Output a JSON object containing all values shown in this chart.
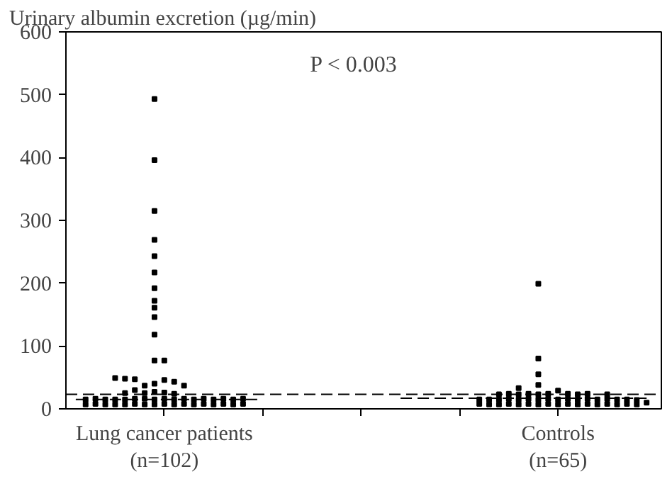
{
  "chart_data": {
    "type": "scatter",
    "ylabel": "Urinary albumin excretion (µg/min)",
    "annotations": [
      "P < 0.003"
    ],
    "categories": [
      null,
      null,
      null,
      null,
      null,
      null,
      null,
      null,
      null,
      "Lung cancer patients\n(n=102)",
      null,
      null,
      null,
      null,
      null,
      null,
      null,
      null,
      null,
      null,
      null,
      null,
      null,
      null,
      null,
      null,
      null,
      null,
      null,
      null,
      null,
      null,
      null,
      null,
      null,
      null,
      null,
      null,
      null,
      null,
      null,
      null,
      null,
      null,
      null,
      null,
      null,
      null,
      null,
      "Controls\n(n=65)",
      null,
      null,
      null,
      null,
      null,
      null,
      null,
      null,
      null,
      null
    ],
    "ylim": [
      0,
      600
    ],
    "yticks": [
      0,
      100,
      200,
      300,
      400,
      500,
      600
    ],
    "grid": false,
    "marker": "square",
    "ref_lines": [
      {
        "axis": "y",
        "value": 23,
        "label": null,
        "color": "#000000",
        "line_style": "dashed"
      }
    ],
    "series": [
      {
        "color": "#000000",
        "values": [
          null,
          7,
          8,
          7,
          7,
          7,
          8,
          7,
          7,
          8,
          7,
          8,
          7,
          8,
          7,
          8,
          7,
          8,
          null,
          null,
          null,
          null,
          null,
          null,
          null,
          null,
          null,
          null,
          null,
          null,
          null,
          null,
          null,
          null,
          null,
          null,
          null,
          null,
          null,
          null,
          null,
          8,
          7,
          7,
          8,
          7,
          8,
          7,
          8,
          7,
          8,
          7,
          8,
          7,
          8,
          7,
          8,
          7,
          10,
          null
        ]
      },
      {
        "color": "#000000",
        "values": [
          null,
          15,
          16,
          15,
          15,
          15,
          16,
          16,
          15,
          16,
          15,
          16,
          15,
          16,
          15,
          16,
          15,
          16,
          null,
          null,
          null,
          null,
          null,
          null,
          null,
          null,
          null,
          null,
          null,
          null,
          null,
          null,
          null,
          null,
          null,
          null,
          null,
          null,
          null,
          null,
          null,
          15,
          15,
          15,
          16,
          15,
          16,
          15,
          16,
          15,
          16,
          15,
          16,
          15,
          16,
          15,
          15,
          14,
          null,
          null
        ]
      },
      {
        "color": "#000000",
        "values": [
          null,
          null,
          null,
          null,
          49,
          25,
          30,
          25,
          27,
          26,
          24,
          37,
          null,
          null,
          null,
          null,
          null,
          null,
          null,
          null,
          null,
          null,
          null,
          null,
          null,
          null,
          null,
          null,
          null,
          null,
          null,
          null,
          null,
          null,
          null,
          null,
          null,
          null,
          null,
          null,
          null,
          null,
          null,
          23,
          24,
          23,
          24,
          23,
          24,
          29,
          24,
          23,
          24,
          null,
          23,
          null,
          null,
          null,
          null,
          null
        ]
      },
      {
        "color": "#000000",
        "values": [
          null,
          null,
          null,
          null,
          null,
          48,
          47,
          37,
          40,
          46,
          43,
          null,
          null,
          null,
          null,
          null,
          null,
          null,
          null,
          null,
          null,
          null,
          null,
          null,
          null,
          null,
          null,
          null,
          null,
          null,
          null,
          null,
          null,
          null,
          null,
          null,
          null,
          null,
          null,
          null,
          null,
          null,
          null,
          null,
          null,
          33,
          null,
          38,
          null,
          null,
          null,
          null,
          null,
          null,
          null,
          null,
          null,
          null,
          null,
          null
        ]
      },
      {
        "color": "#000000",
        "values": [
          null,
          null,
          null,
          null,
          null,
          null,
          null,
          null,
          77,
          77,
          null,
          null,
          null,
          null,
          null,
          null,
          null,
          null,
          null,
          null,
          null,
          null,
          null,
          null,
          null,
          null,
          null,
          null,
          null,
          null,
          null,
          null,
          null,
          null,
          null,
          null,
          null,
          null,
          null,
          null,
          null,
          null,
          null,
          null,
          null,
          null,
          null,
          55,
          null,
          null,
          null,
          null,
          null,
          null,
          null,
          null,
          null,
          null,
          null,
          null
        ]
      },
      {
        "color": "#000000",
        "values": [
          null,
          null,
          null,
          null,
          null,
          null,
          null,
          null,
          118,
          null,
          null,
          null,
          null,
          null,
          null,
          null,
          null,
          null,
          null,
          null,
          null,
          null,
          null,
          null,
          null,
          null,
          null,
          null,
          null,
          null,
          null,
          null,
          null,
          null,
          null,
          null,
          null,
          null,
          null,
          null,
          null,
          null,
          null,
          null,
          null,
          null,
          null,
          80,
          null,
          null,
          null,
          null,
          null,
          null,
          null,
          null,
          null,
          null,
          null,
          null
        ]
      },
      {
        "color": "#000000",
        "values": [
          null,
          null,
          null,
          null,
          null,
          null,
          null,
          null,
          146,
          null,
          null,
          null,
          null,
          null,
          null,
          null,
          null,
          null,
          null,
          null,
          null,
          null,
          null,
          null,
          null,
          null,
          null,
          null,
          null,
          null,
          null,
          null,
          null,
          null,
          null,
          null,
          null,
          null,
          null,
          null,
          null,
          null,
          null,
          null,
          null,
          null,
          null,
          199,
          null,
          null,
          null,
          null,
          null,
          null,
          null,
          null,
          null,
          null,
          null,
          null
        ]
      },
      {
        "color": "#000000",
        "values": [
          null,
          null,
          null,
          null,
          null,
          null,
          null,
          null,
          161,
          null,
          null,
          null,
          null,
          null,
          null,
          null,
          null,
          null,
          null,
          null,
          null,
          null,
          null,
          null,
          null,
          null,
          null,
          null,
          null,
          null,
          null,
          null,
          null,
          null,
          null,
          null,
          null,
          null,
          null,
          null,
          null,
          null,
          null,
          null,
          null,
          null,
          null,
          null,
          null,
          null,
          null,
          null,
          null,
          null,
          null,
          null,
          null,
          null,
          null,
          null
        ]
      },
      {
        "color": "#000000",
        "values": [
          null,
          null,
          null,
          null,
          null,
          null,
          null,
          null,
          172,
          null,
          null,
          null,
          null,
          null,
          null,
          null,
          null,
          null,
          null,
          null,
          null,
          null,
          null,
          null,
          null,
          null,
          null,
          null,
          null,
          null,
          null,
          null,
          null,
          null,
          null,
          null,
          null,
          null,
          null,
          null,
          null,
          null,
          null,
          null,
          null,
          null,
          null,
          null,
          null,
          null,
          null,
          null,
          null,
          null,
          null,
          null,
          null,
          null,
          null,
          null
        ]
      },
      {
        "color": "#000000",
        "values": [
          null,
          null,
          null,
          null,
          null,
          null,
          null,
          null,
          192,
          null,
          null,
          null,
          null,
          null,
          null,
          null,
          null,
          null,
          null,
          null,
          null,
          null,
          null,
          null,
          null,
          null,
          null,
          null,
          null,
          null,
          null,
          null,
          null,
          null,
          null,
          null,
          null,
          null,
          null,
          null,
          null,
          null,
          null,
          null,
          null,
          null,
          null,
          null,
          null,
          null,
          null,
          null,
          null,
          null,
          null,
          null,
          null,
          null,
          null,
          null
        ]
      },
      {
        "color": "#000000",
        "values": [
          null,
          null,
          null,
          null,
          null,
          null,
          null,
          null,
          217,
          null,
          null,
          null,
          null,
          null,
          null,
          null,
          null,
          null,
          null,
          null,
          null,
          null,
          null,
          null,
          null,
          null,
          null,
          null,
          null,
          null,
          null,
          null,
          null,
          null,
          null,
          null,
          null,
          null,
          null,
          null,
          null,
          null,
          null,
          null,
          null,
          null,
          null,
          null,
          null,
          null,
          null,
          null,
          null,
          null,
          null,
          null,
          null,
          null,
          null,
          null
        ]
      },
      {
        "color": "#000000",
        "values": [
          null,
          null,
          null,
          null,
          null,
          null,
          null,
          null,
          243,
          null,
          null,
          null,
          null,
          null,
          null,
          null,
          null,
          null,
          null,
          null,
          null,
          null,
          null,
          null,
          null,
          null,
          null,
          null,
          null,
          null,
          null,
          null,
          null,
          null,
          null,
          null,
          null,
          null,
          null,
          null,
          null,
          null,
          null,
          null,
          null,
          null,
          null,
          null,
          null,
          null,
          null,
          null,
          null,
          null,
          null,
          null,
          null,
          null,
          null,
          null
        ]
      },
      {
        "color": "#000000",
        "values": [
          null,
          null,
          null,
          null,
          null,
          null,
          null,
          null,
          269,
          null,
          null,
          null,
          null,
          null,
          null,
          null,
          null,
          null,
          null,
          null,
          null,
          null,
          null,
          null,
          null,
          null,
          null,
          null,
          null,
          null,
          null,
          null,
          null,
          null,
          null,
          null,
          null,
          null,
          null,
          null,
          null,
          null,
          null,
          null,
          null,
          null,
          null,
          null,
          null,
          null,
          null,
          null,
          null,
          null,
          null,
          null,
          null,
          null,
          null,
          null
        ]
      },
      {
        "color": "#000000",
        "values": [
          null,
          null,
          null,
          null,
          null,
          null,
          null,
          null,
          315,
          null,
          null,
          null,
          null,
          null,
          null,
          null,
          null,
          null,
          null,
          null,
          null,
          null,
          null,
          null,
          null,
          null,
          null,
          null,
          null,
          null,
          null,
          null,
          null,
          null,
          null,
          null,
          null,
          null,
          null,
          null,
          null,
          null,
          null,
          null,
          null,
          null,
          null,
          null,
          null,
          null,
          null,
          null,
          null,
          null,
          null,
          null,
          null,
          null,
          null,
          null
        ]
      },
      {
        "color": "#000000",
        "values": [
          null,
          null,
          null,
          null,
          null,
          null,
          null,
          null,
          396,
          null,
          null,
          null,
          null,
          null,
          null,
          null,
          null,
          null,
          null,
          null,
          null,
          null,
          null,
          null,
          null,
          null,
          null,
          null,
          null,
          null,
          null,
          null,
          null,
          null,
          null,
          null,
          null,
          null,
          null,
          null,
          null,
          null,
          null,
          null,
          null,
          null,
          null,
          null,
          null,
          null,
          null,
          null,
          null,
          null,
          null,
          null,
          null,
          null,
          null,
          null
        ]
      },
      {
        "color": "#000000",
        "values": [
          null,
          null,
          null,
          null,
          null,
          null,
          null,
          null,
          493,
          null,
          null,
          null,
          null,
          null,
          null,
          null,
          null,
          null,
          null,
          null,
          null,
          null,
          null,
          null,
          null,
          null,
          null,
          null,
          null,
          null,
          null,
          null,
          null,
          null,
          null,
          null,
          null,
          null,
          null,
          null,
          null,
          null,
          null,
          null,
          null,
          null,
          null,
          null,
          null,
          null,
          null,
          null,
          null,
          null,
          null,
          null,
          null,
          null,
          null,
          null
        ]
      },
      {
        "type": "line",
        "marker": "none",
        "color": "#000000",
        "line_style": "dashed",
        "values": [
          15,
          15,
          15,
          15,
          15,
          15,
          15,
          15,
          15,
          15,
          15,
          15,
          15,
          15,
          15,
          15,
          15,
          15,
          15,
          15,
          null,
          null,
          null,
          null,
          null,
          null,
          null,
          null,
          null,
          null,
          null,
          null,
          null,
          null,
          null,
          null,
          null,
          null,
          null,
          null,
          null,
          null,
          null,
          null,
          null,
          null,
          null,
          null,
          null,
          null,
          null,
          null,
          null,
          null,
          null,
          null,
          null,
          null,
          null,
          null
        ]
      },
      {
        "type": "line",
        "marker": "none",
        "color": "#000000",
        "line_style": "dashed",
        "values": [
          null,
          null,
          null,
          null,
          null,
          null,
          null,
          null,
          null,
          null,
          null,
          null,
          null,
          null,
          null,
          null,
          null,
          null,
          null,
          null,
          null,
          null,
          null,
          null,
          null,
          null,
          null,
          null,
          null,
          null,
          null,
          null,
          null,
          17,
          17,
          17,
          17,
          17,
          17,
          17,
          17,
          17,
          17,
          17,
          17,
          17,
          17,
          17,
          17,
          17,
          17,
          17,
          17,
          17,
          17,
          17,
          17,
          17,
          17,
          null
        ]
      }
    ]
  }
}
